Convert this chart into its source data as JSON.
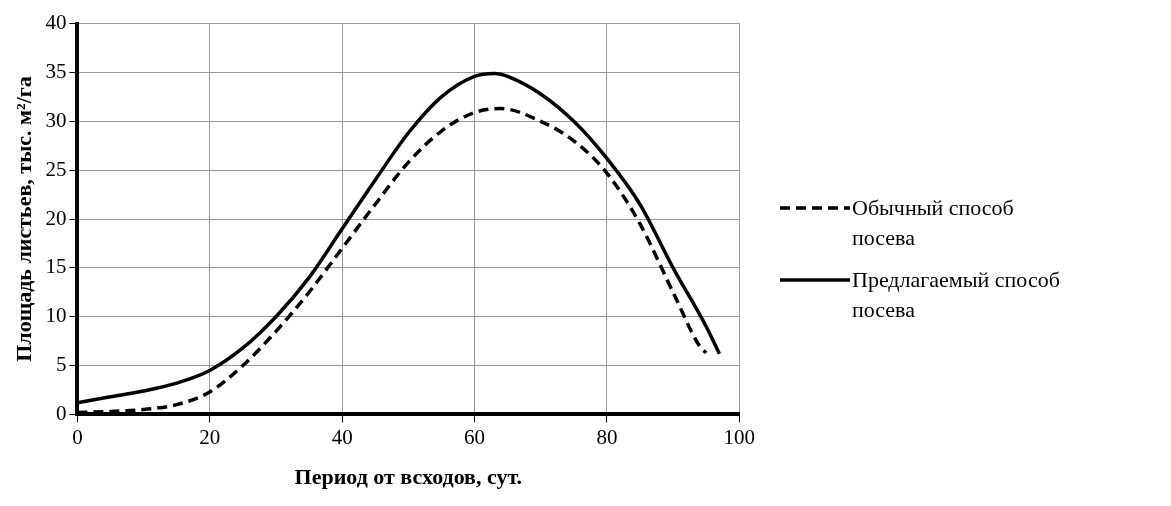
{
  "chart_data": {
    "type": "line",
    "xlabel": "Период от всходов, сут.",
    "ylabel": "Площадь листьев, тыс. м²/га",
    "xlim": [
      0,
      100
    ],
    "xticks": [
      0,
      20,
      40,
      60,
      80,
      100
    ],
    "ylim": [
      0,
      40
    ],
    "yticks": [
      0,
      5,
      10,
      15,
      20,
      25,
      30,
      35,
      40
    ],
    "grid": true,
    "legend": "right",
    "marker": "none",
    "series": [
      {
        "name": "Обычный способ посева",
        "color": "#000000",
        "line_style": "dashed",
        "x": [
          0,
          5,
          10,
          15,
          20,
          25,
          30,
          35,
          40,
          45,
          50,
          55,
          60,
          64,
          70,
          75,
          80,
          85,
          90,
          94,
          95
        ],
        "values": [
          0.2,
          0.3,
          0.5,
          1,
          2.3,
          5,
          8.5,
          12.5,
          17,
          21.5,
          25.8,
          29,
          30.9,
          31.3,
          30,
          28,
          24.7,
          19.5,
          12.5,
          7,
          6.3
        ]
      },
      {
        "name": "Предлагаемый способ посева",
        "color": "#000000",
        "line_style": "solid",
        "x": [
          0,
          5,
          10,
          15,
          20,
          25,
          30,
          35,
          40,
          45,
          50,
          55,
          60,
          63,
          65,
          70,
          75,
          80,
          85,
          90,
          95,
          97
        ],
        "values": [
          1.2,
          1.8,
          2.4,
          3.2,
          4.5,
          6.8,
          10,
          14,
          19,
          24,
          28.8,
          32.5,
          34.6,
          34.9,
          34.6,
          32.8,
          30,
          26.2,
          21.5,
          15,
          9,
          6.2
        ]
      }
    ]
  }
}
